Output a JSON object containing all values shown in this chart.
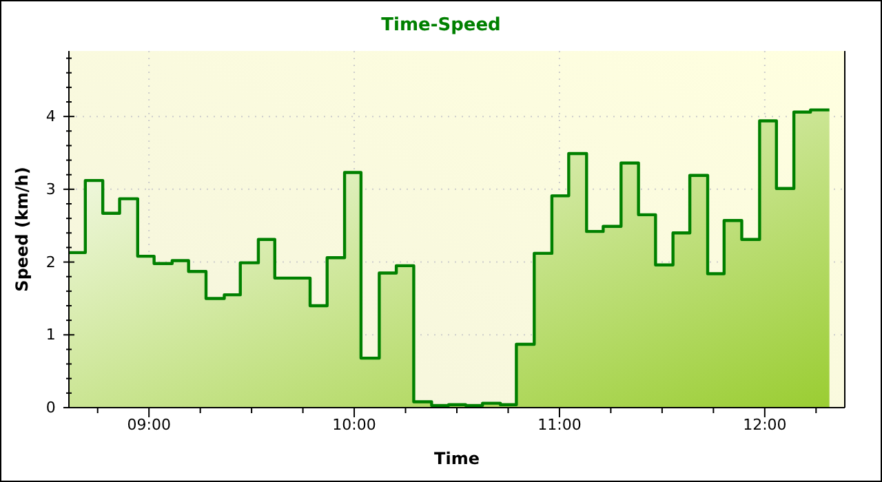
{
  "chart_data": {
    "type": "area",
    "title": "Time-Speed",
    "xlabel": "Time",
    "ylabel": "Speed (km/h)",
    "x": [
      8.61,
      8.69,
      8.775,
      8.857,
      8.945,
      9.025,
      9.113,
      9.193,
      9.278,
      9.367,
      9.445,
      9.533,
      9.613,
      9.785,
      9.868,
      9.953,
      10.033,
      10.122,
      10.205,
      10.29,
      10.377,
      10.46,
      10.543,
      10.625,
      10.712,
      10.79,
      10.877,
      10.963,
      11.045,
      11.132,
      11.213,
      11.3,
      11.385,
      11.468,
      11.553,
      11.635,
      11.722,
      11.802,
      11.888,
      11.975,
      12.057,
      12.142,
      12.223,
      12.315
    ],
    "series": [
      {
        "color": "#008000",
        "values": [
          2.13,
          3.12,
          2.67,
          2.87,
          2.08,
          1.98,
          2.02,
          1.87,
          1.5,
          1.55,
          1.99,
          2.31,
          1.78,
          1.4,
          2.06,
          3.23,
          0.68,
          1.85,
          1.95,
          0.08,
          0.03,
          0.04,
          0.03,
          0.06,
          0.04,
          0.87,
          2.12,
          2.91,
          3.49,
          2.42,
          2.49,
          3.36,
          2.65,
          1.96,
          2.4,
          3.19,
          1.84,
          2.57,
          2.31,
          3.94,
          3.01,
          4.06,
          4.09,
          4.09
        ]
      }
    ],
    "xlim": [
      8.61,
      12.39
    ],
    "ylim": [
      0,
      4.9
    ],
    "xticks": [
      {
        "value": 8.75,
        "label": null
      },
      {
        "value": 9,
        "label": "09:00"
      },
      {
        "value": 9.25,
        "label": null
      },
      {
        "value": 9.5,
        "label": null
      },
      {
        "value": 9.75,
        "label": null
      },
      {
        "value": 10,
        "label": "10:00"
      },
      {
        "value": 10.25,
        "label": null
      },
      {
        "value": 10.5,
        "label": null
      },
      {
        "value": 10.75,
        "label": null
      },
      {
        "value": 11,
        "label": "11:00"
      },
      {
        "value": 11.25,
        "label": null
      },
      {
        "value": 11.5,
        "label": null
      },
      {
        "value": 11.75,
        "label": null
      },
      {
        "value": 12,
        "label": "12:00"
      },
      {
        "value": 12.25,
        "label": null
      }
    ],
    "yticks": [
      0,
      {
        "value": 0.2,
        "label": null
      },
      {
        "value": 0.4,
        "label": null
      },
      {
        "value": 0.6,
        "label": null
      },
      {
        "value": 0.8,
        "label": null
      },
      1,
      {
        "value": 1.2,
        "label": null
      },
      {
        "value": 1.4,
        "label": null
      },
      {
        "value": 1.6,
        "label": null
      },
      {
        "value": 1.8,
        "label": null
      },
      2,
      {
        "value": 2.2,
        "label": null
      },
      {
        "value": 2.4,
        "label": null
      },
      {
        "value": 2.6,
        "label": null
      },
      {
        "value": 2.8,
        "label": null
      },
      3,
      {
        "value": 3.2,
        "label": null
      },
      {
        "value": 3.4,
        "label": null
      },
      {
        "value": 3.6,
        "label": null
      },
      {
        "value": 3.8,
        "label": null
      },
      4,
      {
        "value": 4.2,
        "label": null
      },
      {
        "value": 4.4,
        "label": null
      },
      {
        "value": 4.6,
        "label": null
      },
      {
        "value": 4.8,
        "label": null
      }
    ],
    "grid": true
  }
}
